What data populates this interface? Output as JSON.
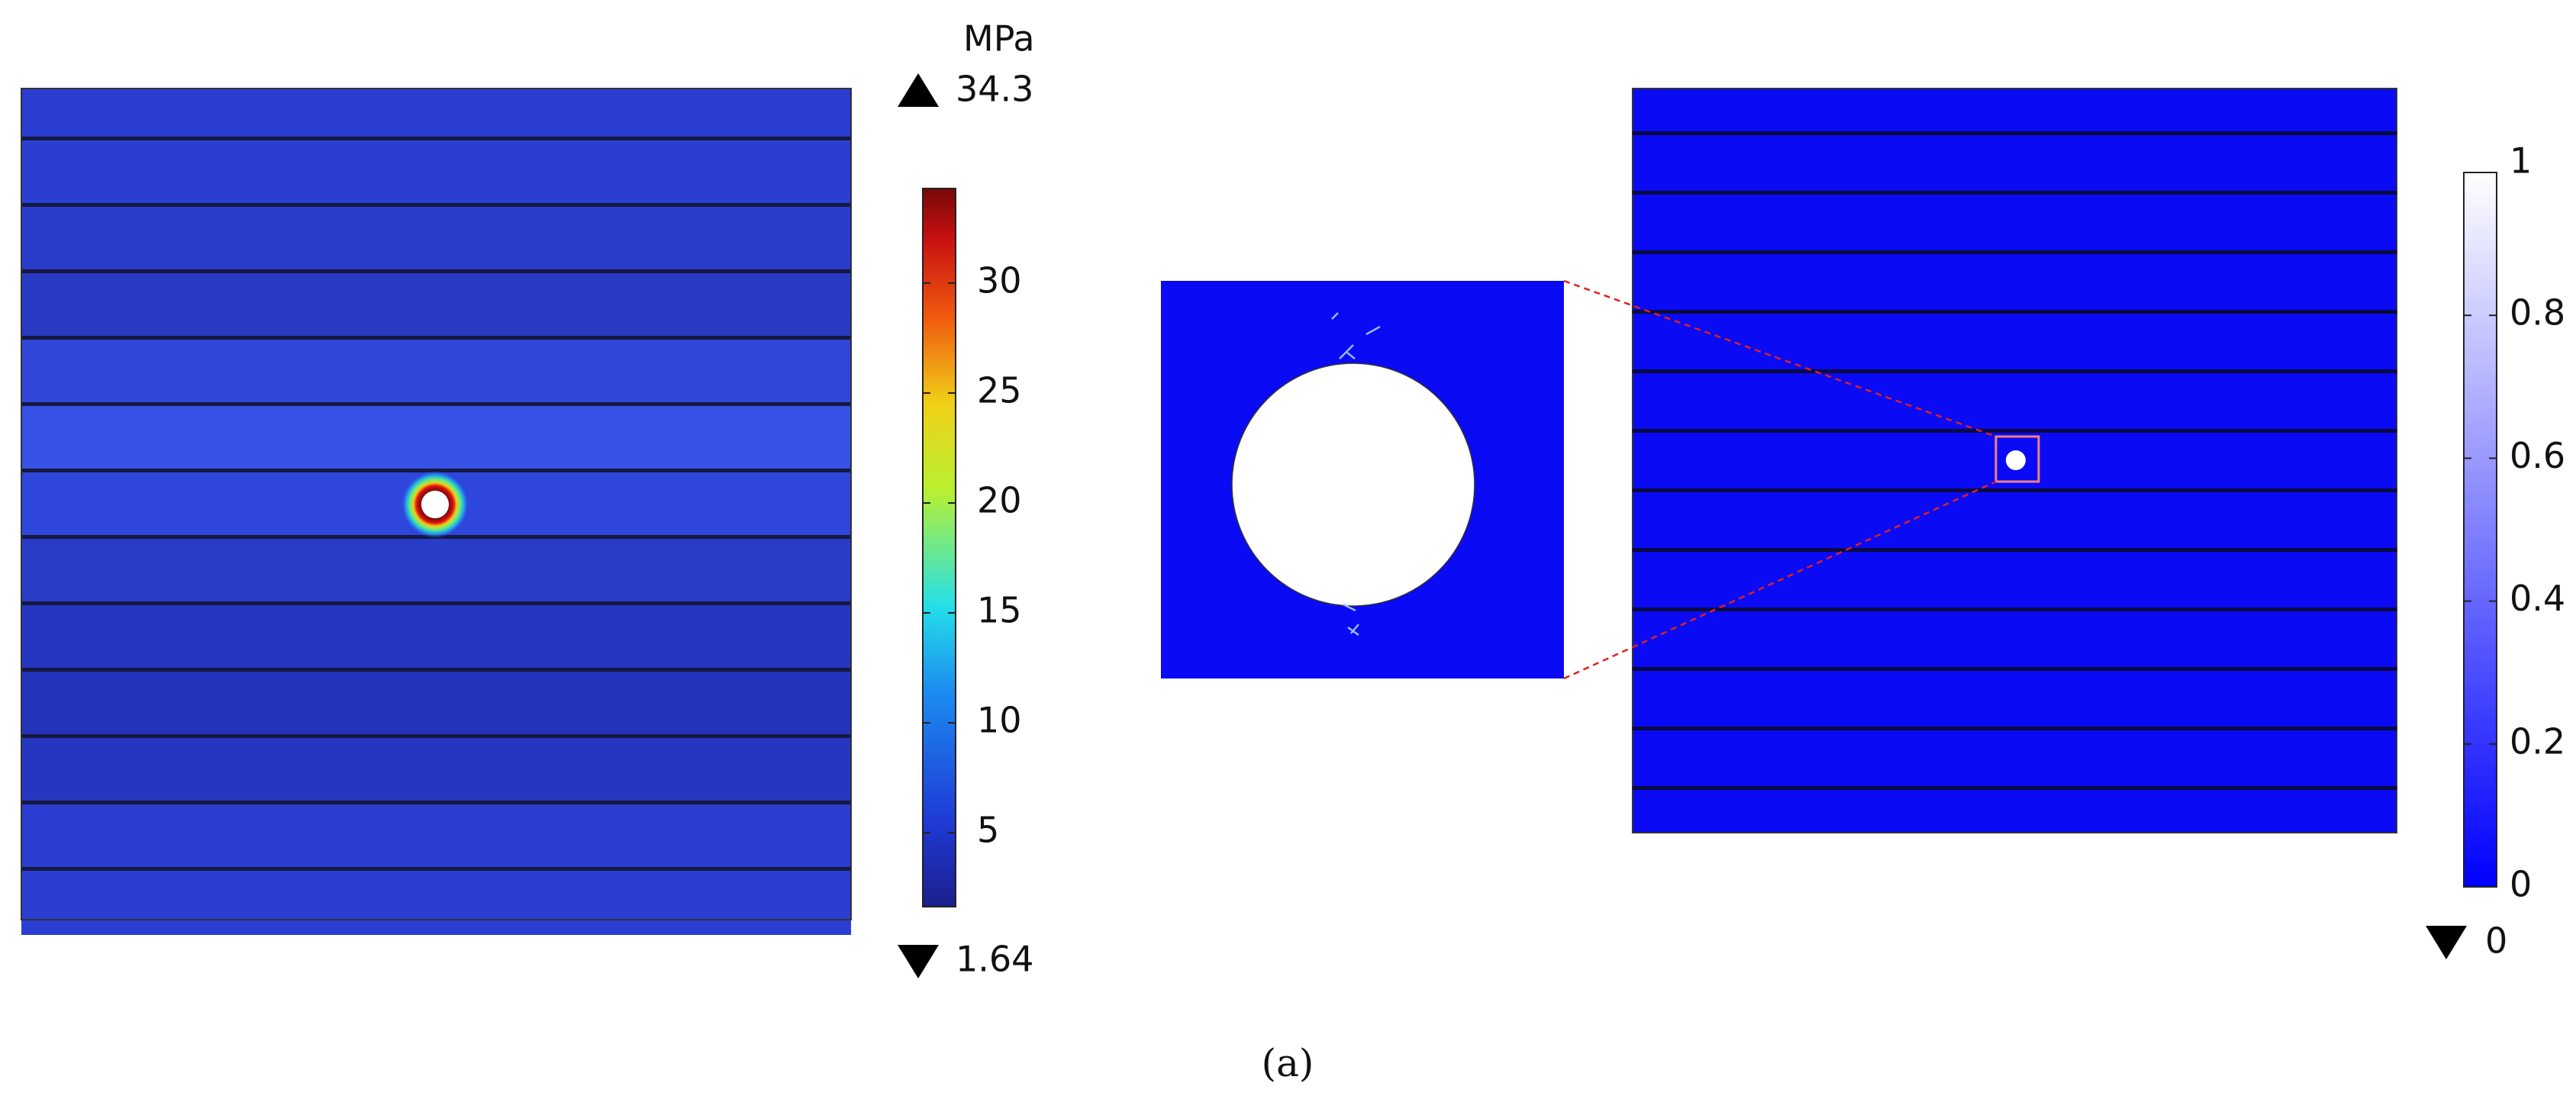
{
  "left_panel": {
    "colorbar": {
      "unit": "MPa",
      "max": 34.3,
      "min": 1.64,
      "ticks": [
        5,
        10,
        15,
        20,
        25,
        30
      ]
    }
  },
  "right_panel": {
    "colorbar": {
      "min": 0,
      "ticks": [
        0,
        0.2,
        0.4,
        0.6,
        0.8,
        1
      ]
    }
  },
  "caption": "(a)"
}
